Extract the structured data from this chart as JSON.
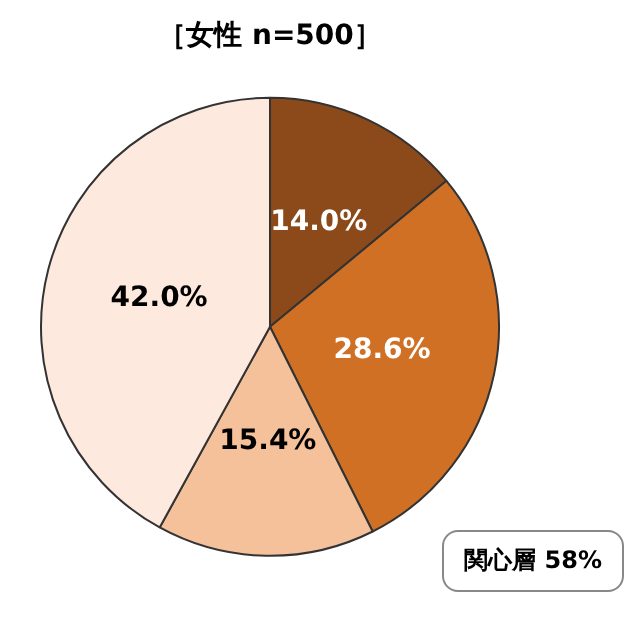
{
  "chart_data": {
    "type": "pie",
    "title": "［女性 n=500］",
    "categories": [
      null,
      null,
      null,
      null
    ],
    "values": [
      14.0,
      28.6,
      15.4,
      42.0
    ],
    "colors": [
      "#8c4a1a",
      "#d07025",
      "#f5c19a",
      "#fde9de"
    ],
    "value_labels": [
      "14.0%",
      "28.6%",
      "15.4%",
      "42.0%"
    ],
    "annotations": [
      "関心層 58%"
    ],
    "legend": false
  }
}
